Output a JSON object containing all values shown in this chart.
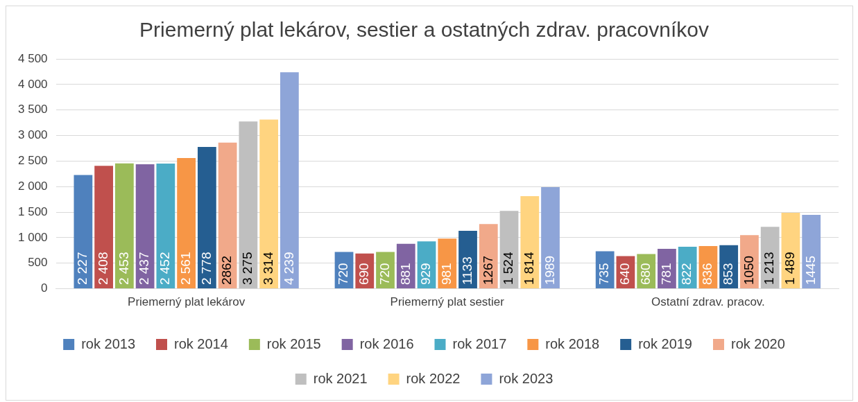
{
  "chart_data": {
    "type": "bar",
    "title": "Priemerný plat lekárov, sestier a ostatných zdrav. pracovníkov",
    "categories": [
      "Priemerný plat lekárov",
      "Priemerný plat sestier",
      "Ostatní zdrav. pracov."
    ],
    "ylim": [
      0,
      4500
    ],
    "yticks": [
      0,
      {
        "value": 500,
        "label": "500"
      },
      {
        "value": 1000,
        "label": "1 000"
      },
      {
        "value": 1500,
        "label": "1 500"
      },
      {
        "value": 2000,
        "label": "2 000"
      },
      {
        "value": 2500,
        "label": "2 500"
      },
      {
        "value": 3000,
        "label": "3 000"
      },
      {
        "value": 3500,
        "label": "3 500"
      },
      {
        "value": 4000,
        "label": "4 000"
      },
      {
        "value": 4500,
        "label": "4 500"
      }
    ],
    "grid": "y",
    "legend": "bottom",
    "series": [
      {
        "name": "rok 2013",
        "color": "#4f81bd",
        "values": [
          2227,
          720,
          735
        ],
        "value_labels": [
          "2 227",
          "720",
          "735"
        ]
      },
      {
        "name": "rok 2014",
        "color": "#c0504d",
        "values": [
          2408,
          690,
          640
        ],
        "value_labels": [
          "2 408",
          "690",
          "640"
        ]
      },
      {
        "name": "rok 2015",
        "color": "#9bbb59",
        "values": [
          2453,
          720,
          680
        ],
        "value_labels": [
          "2 453",
          "720",
          "680"
        ]
      },
      {
        "name": "rok 2016",
        "color": "#8064a2",
        "values": [
          2437,
          881,
          781
        ],
        "value_labels": [
          "2 437",
          "881",
          "781"
        ]
      },
      {
        "name": "rok 2017",
        "color": "#4bacc6",
        "values": [
          2452,
          929,
          822
        ],
        "value_labels": [
          "2 452",
          "929",
          "822"
        ]
      },
      {
        "name": "rok 2018",
        "color": "#f79646",
        "values": [
          2561,
          981,
          836
        ],
        "value_labels": [
          "2 561",
          "981",
          "836"
        ]
      },
      {
        "name": "rok 2019",
        "color": "#255e91",
        "values": [
          2778,
          1133,
          853
        ],
        "value_labels": [
          "2 778",
          "1133",
          "853"
        ]
      },
      {
        "name": "rok 2020",
        "color": "#f1a98a",
        "values": [
          2862,
          1267,
          1050
        ],
        "value_labels": [
          "2862",
          "1267",
          "1050"
        ]
      },
      {
        "name": "rok 2021",
        "color": "#bfbfbf",
        "values": [
          3275,
          1524,
          1213
        ],
        "value_labels": [
          "3 275",
          "1 524",
          "1 213"
        ]
      },
      {
        "name": "rok 2022",
        "color": "#ffd480",
        "values": [
          3314,
          1814,
          1489
        ],
        "value_labels": [
          "3 314",
          "1 814",
          "1 489"
        ]
      },
      {
        "name": "rok 2023",
        "color": "#8ea5d8",
        "values": [
          4239,
          1989,
          1445
        ],
        "value_labels": [
          "4 239",
          "1989",
          "1445"
        ]
      }
    ]
  }
}
